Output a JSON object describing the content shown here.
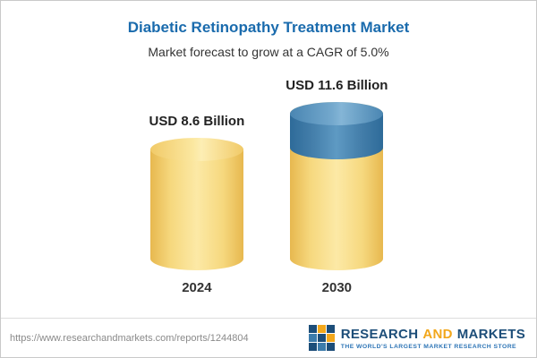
{
  "chart_data": {
    "type": "bar",
    "title": "Diabetic Retinopathy Treatment Market",
    "subtitle": "Market forecast to grow at a CAGR of 5.0%",
    "categories": [
      "2024",
      "2030"
    ],
    "values": [
      8.6,
      11.6
    ],
    "value_labels": [
      "USD 8.6 Billion",
      "USD 11.6 Billion"
    ],
    "unit": "USD Billion",
    "cagr_percent": 5.0,
    "legend": "none",
    "grid": "off",
    "colors": {
      "title": "#1a6bad",
      "bar_base": "#f5cd67",
      "bar_growth_segment": "#3e7eac"
    },
    "notes": "Second bar (2030) shows base value in gold with incremental growth segment in blue on top; 3D cylinder style"
  },
  "footer": {
    "url": "https://www.researchandmarkets.com/reports/1244804",
    "brand": {
      "research": "RESEARCH",
      "and": "AND",
      "markets": "MARKETS",
      "tagline": "THE WORLD'S LARGEST MARKET RESEARCH STORE"
    }
  }
}
